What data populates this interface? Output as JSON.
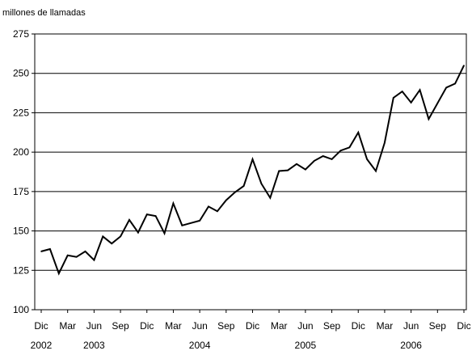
{
  "chart_data": {
    "type": "line",
    "title": "",
    "ylabel": "millones de llamadas",
    "xlabel": "",
    "ylim": [
      100,
      275
    ],
    "yticks": [
      100,
      125,
      150,
      175,
      200,
      225,
      250,
      275
    ],
    "grid": true,
    "legend": "none",
    "x_tick_labels": [
      "Dic",
      "Mar",
      "Jun",
      "Sep",
      "Dic",
      "Mar",
      "Jun",
      "Sep",
      "Dic",
      "Mar",
      "Jun",
      "Sep",
      "Dic",
      "Mar",
      "Jun",
      "Sep",
      "Dic"
    ],
    "year_labels": [
      {
        "label": "2002",
        "tick_index": 0
      },
      {
        "label": "2003",
        "tick_index": 2
      },
      {
        "label": "2004",
        "tick_index": 6
      },
      {
        "label": "2005",
        "tick_index": 10
      },
      {
        "label": "2006",
        "tick_index": 14
      }
    ],
    "x_start": "2002-12",
    "x_end": "2006-12",
    "series": [
      {
        "values": [
          137,
          138.5,
          123,
          134.5,
          133.5,
          137,
          131.5,
          146.5,
          142,
          146.5,
          157,
          149,
          160.5,
          159.5,
          148.5,
          167.5,
          153.5,
          155,
          156.5,
          165.5,
          162.5,
          169.5,
          174.5,
          178.5,
          195.5,
          180,
          171,
          188,
          188.5,
          192.5,
          189,
          194.5,
          197.5,
          195.5,
          201,
          203,
          212.5,
          195.5,
          188,
          206,
          234.5,
          238.5,
          231.5,
          239.5,
          221,
          231,
          241,
          243.5,
          255
        ]
      }
    ],
    "line_color": "#000000",
    "grid_color": "#000000"
  }
}
